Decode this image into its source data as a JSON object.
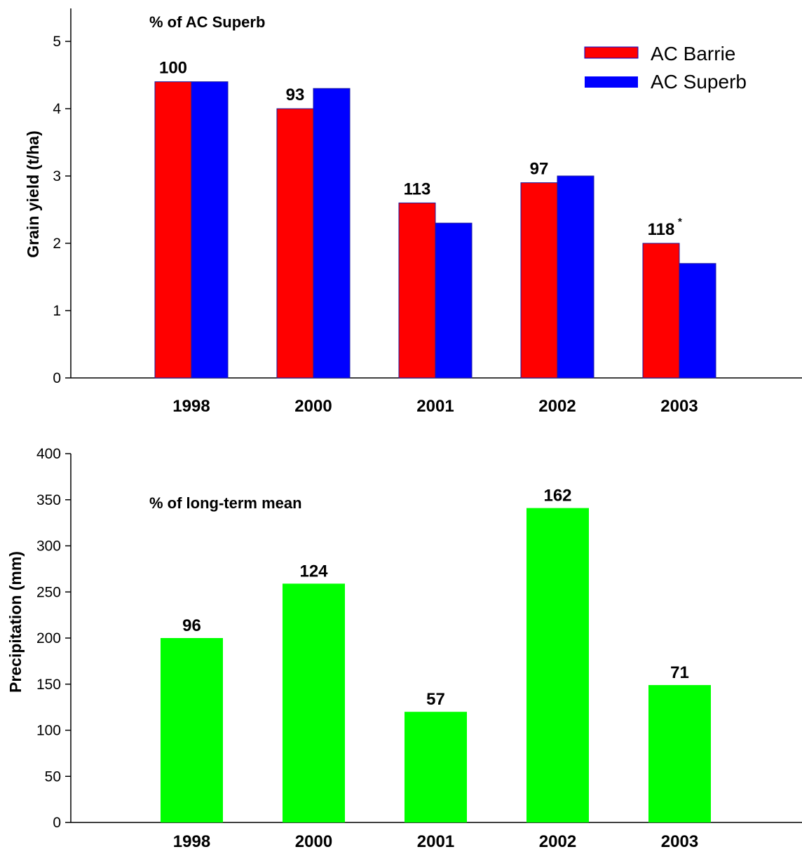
{
  "chart_data": [
    {
      "type": "bar",
      "title": "",
      "annotation": "% of AC Superb",
      "xlabel": "",
      "ylabel": "Grain yield (t/ha)",
      "ylim": [
        0,
        5
      ],
      "yticks": [
        "0",
        "1",
        "2",
        "3",
        "4",
        "5"
      ],
      "categories": [
        "1998",
        "2000",
        "2001",
        "2002",
        "2003"
      ],
      "series": [
        {
          "name": "AC Barrie",
          "color": "#ff0000",
          "values": [
            4.4,
            4.0,
            2.6,
            2.9,
            2.0
          ]
        },
        {
          "name": "AC Superb",
          "color": "#0000ff",
          "values": [
            4.4,
            4.3,
            2.3,
            3.0,
            1.7
          ]
        }
      ],
      "data_labels": [
        "100",
        "93",
        "113",
        "97",
        "118"
      ],
      "data_label_marks": [
        "",
        "",
        "",
        "",
        "*"
      ],
      "legend": "top-right",
      "grid": false
    },
    {
      "type": "bar",
      "title": "",
      "annotation": "% of long-term mean",
      "xlabel": "",
      "ylabel": "Precipitation (mm)",
      "ylim": [
        0,
        400
      ],
      "yticks": [
        "0",
        "50",
        "100",
        "150",
        "200",
        "250",
        "300",
        "350",
        "400"
      ],
      "categories": [
        "1998",
        "2000",
        "2001",
        "2002",
        "2003"
      ],
      "series": [
        {
          "color": "#00ff00",
          "values": [
            200,
            259,
            120,
            341,
            149
          ]
        }
      ],
      "data_labels": [
        "96",
        "124",
        "57",
        "162",
        "71"
      ],
      "grid": false
    }
  ]
}
